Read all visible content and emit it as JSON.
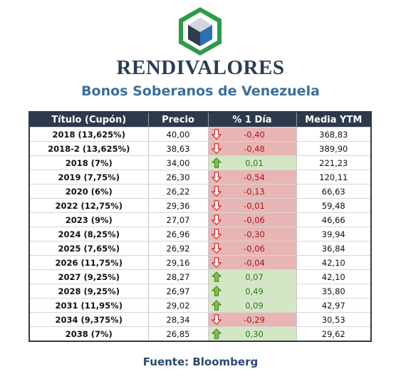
{
  "brand": "RENDIVALORES",
  "subtitle": "Bonos Soberanos de Venezuela",
  "colors": {
    "header_bg": "#2e3a4b",
    "negative_bg": "#e8b5b5",
    "positive_bg": "#d4e7c4",
    "negative_text": "#a31a1a",
    "positive_text": "#2a7a1e"
  },
  "table": {
    "headers": [
      "Título (Cupón)",
      "Precio",
      "% 1 Día",
      "Media YTM"
    ],
    "rows": [
      {
        "title": "2018 (13,625%)",
        "price": "40,00",
        "change": "-0,40",
        "direction": "down",
        "ytm": "368,83"
      },
      {
        "title": "2018-2 (13,625%)",
        "price": "38,63",
        "change": "-0,48",
        "direction": "down",
        "ytm": "389,90"
      },
      {
        "title": "2018 (7%)",
        "price": "34,00",
        "change": "0,01",
        "direction": "up",
        "ytm": "221,23"
      },
      {
        "title": "2019 (7,75%)",
        "price": "26,30",
        "change": "-0,54",
        "direction": "down",
        "ytm": "120,11"
      },
      {
        "title": "2020 (6%)",
        "price": "26,22",
        "change": "-0,13",
        "direction": "down",
        "ytm": "66,63"
      },
      {
        "title": "2022 (12,75%)",
        "price": "29,36",
        "change": "-0,01",
        "direction": "down",
        "ytm": "59,48"
      },
      {
        "title": "2023 (9%)",
        "price": "27,07",
        "change": "-0,06",
        "direction": "down",
        "ytm": "46,66"
      },
      {
        "title": "2024 (8,25%)",
        "price": "26,96",
        "change": "-0,30",
        "direction": "down",
        "ytm": "39,94"
      },
      {
        "title": "2025 (7,65%)",
        "price": "26,92",
        "change": "-0,06",
        "direction": "down",
        "ytm": "36,84"
      },
      {
        "title": "2026 (11,75%)",
        "price": "29,16",
        "change": "-0,04",
        "direction": "down",
        "ytm": "42,10"
      },
      {
        "title": "2027 (9,25%)",
        "price": "28,27",
        "change": "0,07",
        "direction": "up",
        "ytm": "42,10"
      },
      {
        "title": "2028 (9,25%)",
        "price": "26,97",
        "change": "0,49",
        "direction": "up",
        "ytm": "35,80"
      },
      {
        "title": "2031 (11,95%)",
        "price": "29,02",
        "change": "0,09",
        "direction": "up",
        "ytm": "42,97"
      },
      {
        "title": "2034 (9,375%)",
        "price": "28,34",
        "change": "-0,29",
        "direction": "down",
        "ytm": "30,53"
      },
      {
        "title": "2038 (7%)",
        "price": "26,85",
        "change": "0,30",
        "direction": "up",
        "ytm": "29,62"
      }
    ]
  },
  "source": "Fuente: Bloomberg"
}
